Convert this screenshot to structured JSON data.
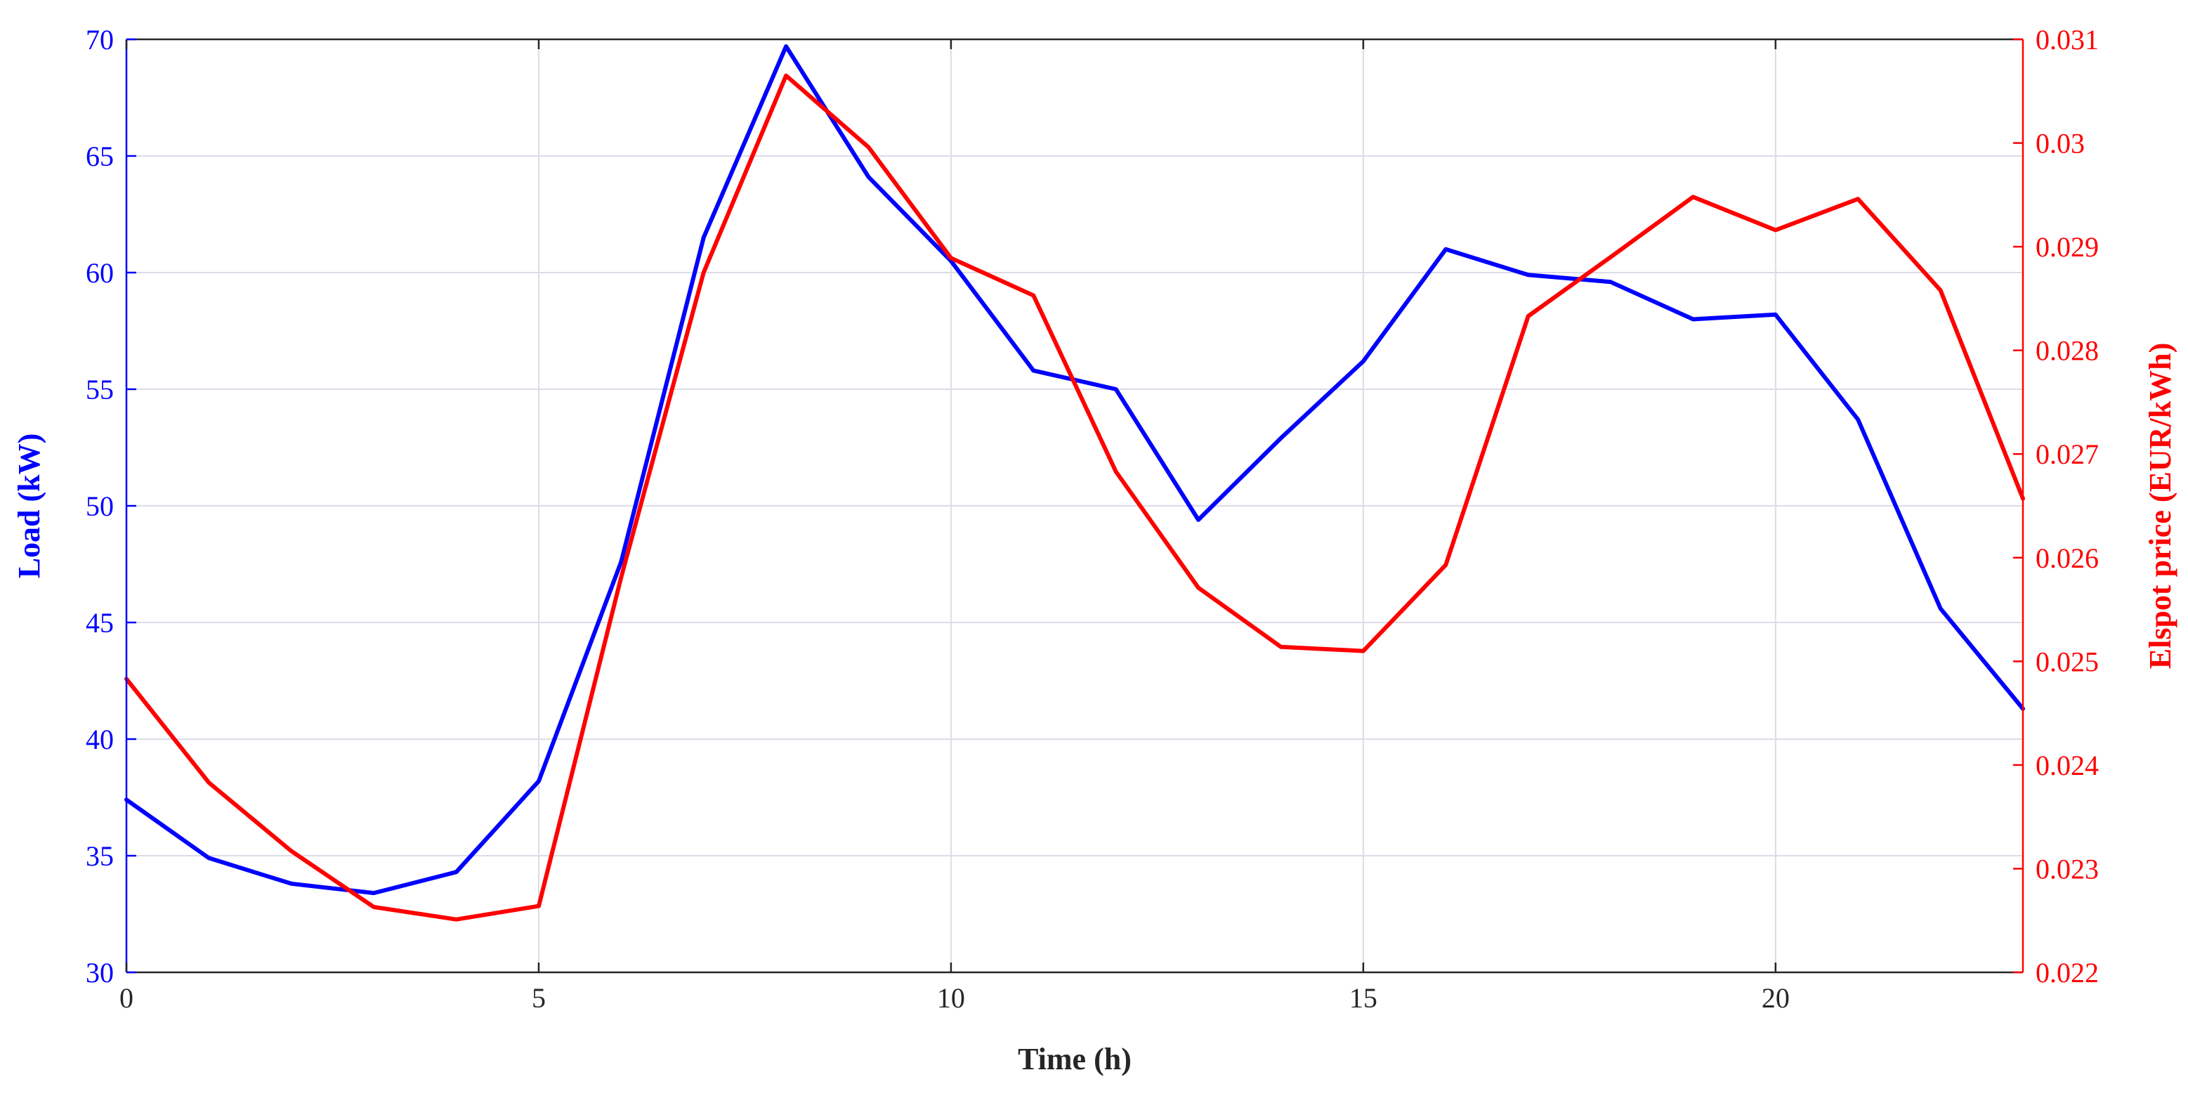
{
  "chart_data": {
    "type": "line",
    "xlabel": "Time (h)",
    "ylabel_left": "Load (kW)",
    "ylabel_right": "Elspot price (EUR/kWh)",
    "xlim": [
      0,
      23
    ],
    "ylim_left": [
      30,
      70
    ],
    "ylim_right": [
      0.022,
      0.031
    ],
    "x_ticks": [
      0,
      5,
      10,
      15,
      20
    ],
    "y_ticks_left": [
      30,
      35,
      40,
      45,
      50,
      55,
      60,
      65,
      70
    ],
    "y_ticks_right": [
      0.022,
      0.023,
      0.024,
      0.025,
      0.026,
      0.027,
      0.028,
      0.029,
      0.03,
      0.031
    ],
    "y_tick_labels_right": [
      "0.022",
      "0.023",
      "0.024",
      "0.025",
      "0.026",
      "0.027",
      "0.028",
      "0.029",
      "0.03",
      "0.031"
    ],
    "grid": true,
    "x": [
      0,
      1,
      2,
      3,
      4,
      5,
      6,
      7,
      8,
      9,
      10,
      11,
      12,
      13,
      14,
      15,
      16,
      17,
      18,
      19,
      20,
      21,
      22,
      23
    ],
    "series": [
      {
        "axis": "left",
        "color": "#0000ff",
        "values": [
          37.4,
          34.9,
          33.8,
          33.4,
          34.3,
          38.2,
          47.6,
          61.5,
          69.7,
          64.1,
          60.5,
          55.8,
          55.0,
          49.4,
          52.9,
          56.2,
          61.0,
          59.9,
          59.6,
          58.0,
          58.2,
          53.7,
          45.6,
          41.3
        ]
      },
      {
        "axis": "right",
        "color": "#ff0000",
        "values": [
          0.02483,
          0.02383,
          0.02317,
          0.02263,
          0.02251,
          0.02264,
          0.02581,
          0.02875,
          0.03065,
          0.02996,
          0.02889,
          0.02853,
          0.02683,
          0.02571,
          0.02514,
          0.0251,
          0.02593,
          0.02833,
          0.0289,
          0.02948,
          0.02916,
          0.02946,
          0.02858,
          0.02657
        ]
      }
    ]
  },
  "colors": {
    "left_axis": "#0000ff",
    "right_axis": "#ff0000",
    "x_axis": "#262626",
    "grid": "#dcdce8"
  }
}
